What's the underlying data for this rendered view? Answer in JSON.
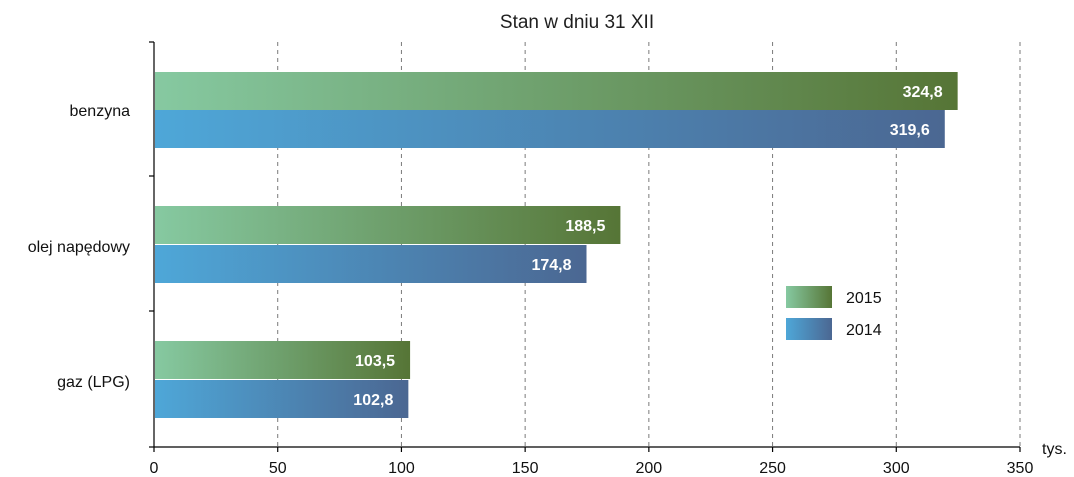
{
  "chart_data": {
    "type": "bar",
    "orientation": "horizontal",
    "title": "Stan w dniu 31 XII",
    "xlabel": "tys.",
    "ylabel": "",
    "xlim": [
      0,
      350
    ],
    "xticks": [
      0,
      50,
      100,
      150,
      200,
      250,
      300,
      350
    ],
    "grid": true,
    "legend_position": "right",
    "categories": [
      "benzyna",
      "olej napędowy",
      "gaz (LPG)"
    ],
    "series": [
      {
        "name": "2015",
        "values": [
          324.8,
          188.5,
          103.5
        ],
        "labels": [
          "324,8",
          "188,5",
          "103,5"
        ],
        "colors": [
          "#86c9a1",
          "#567536"
        ]
      },
      {
        "name": "2014",
        "values": [
          319.6,
          174.8,
          102.8
        ],
        "labels": [
          "319,6",
          "174,8",
          "102,8"
        ],
        "colors": [
          "#4ea7d8",
          "#4b6792"
        ]
      }
    ]
  }
}
